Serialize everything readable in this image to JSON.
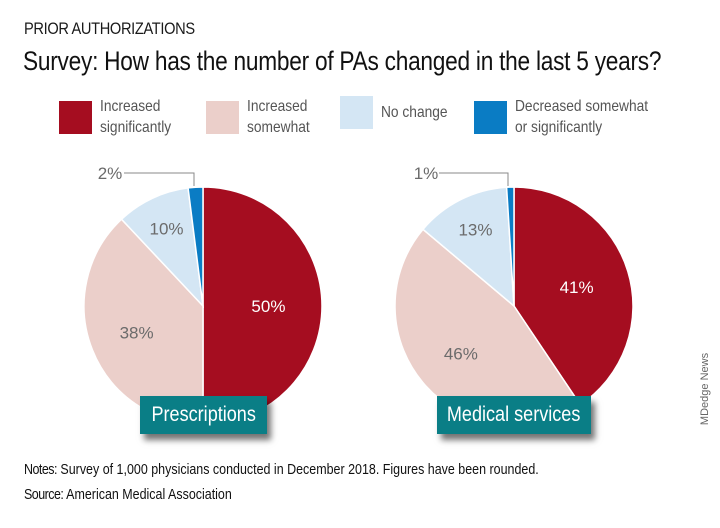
{
  "header": {
    "kicker": "PRIOR AUTHORIZATIONS",
    "title": "Survey: How has the number of PAs changed in the last 5 years?"
  },
  "legend": [
    {
      "label": "Increased\nsignificantly",
      "color": "#a50d20"
    },
    {
      "label": "Increased\nsomewhat",
      "color": "#ebcfca"
    },
    {
      "label": "No change",
      "color": "#d4e6f4"
    },
    {
      "label": "Decreased somewhat\nor significantly",
      "color": "#0a7cc4"
    }
  ],
  "chart_data": [
    {
      "type": "pie",
      "title": "Prescriptions",
      "categories": [
        "Increased significantly",
        "Increased somewhat",
        "No change",
        "Decreased somewhat or significantly"
      ],
      "values": [
        50,
        38,
        10,
        2
      ],
      "data_labels": [
        "50%",
        "38%",
        "10%",
        "2%"
      ],
      "colors": [
        "#a50d20",
        "#ebcfca",
        "#d4e6f4",
        "#0a7cc4"
      ],
      "label_colors": [
        "#ffffff",
        "#6b6b6b",
        "#6b6b6b",
        "#6b6b6b"
      ],
      "start": "top",
      "direction": "clockwise"
    },
    {
      "type": "pie",
      "title": "Medical services",
      "categories": [
        "Increased significantly",
        "Increased somewhat",
        "No change",
        "Decreased somewhat or significantly"
      ],
      "values": [
        41,
        46,
        13,
        1
      ],
      "data_labels": [
        "41%",
        "46%",
        "13%",
        "1%"
      ],
      "colors": [
        "#a50d20",
        "#ebcfca",
        "#d4e6f4",
        "#0a7cc4"
      ],
      "label_colors": [
        "#ffffff",
        "#6b6b6b",
        "#6b6b6b",
        "#6b6b6b"
      ],
      "start": "top",
      "direction": "clockwise"
    }
  ],
  "footer": {
    "notes_label": "Notes:",
    "notes_text": " Survey of 1,000 physicians conducted in December 2018. Figures have been rounded.",
    "source_label": "Source:",
    "source_text": " American Medical Association"
  },
  "credit": "MDedge News"
}
